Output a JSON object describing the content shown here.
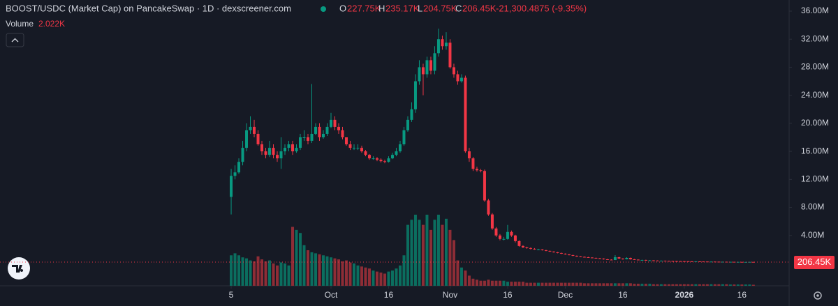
{
  "chart_data": {
    "type": "candlestick",
    "title": "BOOST/USDC (Market Cap) on PancakeSwap · 1D · dexscreener.com",
    "header": {
      "o": "O",
      "open": "227.75K",
      "h": "H",
      "high": "235.17K",
      "l": "L",
      "low": "204.75K",
      "c": "C",
      "close": "206.45K",
      "change": "-21,300.4875 (-9.35%)"
    },
    "volume_label": "Volume",
    "volume_value": "2.022K",
    "up_color": "#089981",
    "down_color": "#f23645",
    "volume_up_color": "#0b6e5f",
    "volume_down_color": "#8e2d36",
    "grid": false,
    "xlim": [
      -60.2,
      145.3
    ],
    "xticks": [
      {
        "value": 0,
        "label": "5"
      },
      {
        "value": 26,
        "label": "Oct"
      },
      {
        "value": 41,
        "label": "16"
      },
      {
        "value": 57,
        "label": "Nov"
      },
      {
        "value": 72,
        "label": "16"
      },
      {
        "value": 87,
        "label": "Dec"
      },
      {
        "value": 102,
        "label": "16"
      },
      {
        "value": 118,
        "label": "2026"
      },
      {
        "value": 133,
        "label": "16"
      }
    ],
    "ylim": [
      -3.18,
      37.59
    ],
    "yticks": [
      {
        "value": 4,
        "label": "4.00M"
      },
      {
        "value": 8,
        "label": "8.00M"
      },
      {
        "value": 12,
        "label": "12.00M"
      },
      {
        "value": 16,
        "label": "16.00M"
      },
      {
        "value": 20,
        "label": "20.00M"
      },
      {
        "value": 24,
        "label": "24.00M"
      },
      {
        "value": 28,
        "label": "28.00M"
      },
      {
        "value": 32,
        "label": "32.00M"
      },
      {
        "value": 36,
        "label": "36.00M"
      }
    ],
    "last_price": {
      "value": 0.20645,
      "label": "206.45K"
    },
    "open": [
      9.5,
      12.5,
      13,
      14.5,
      16.5,
      19,
      19.5,
      18.5,
      17,
      16,
      15.5,
      16.5,
      15.5,
      15,
      16,
      16.5,
      17,
      16,
      16.5,
      18,
      18,
      17.5,
      18.5,
      19.5,
      18,
      18.5,
      19.5,
      20.5,
      19.5,
      19,
      18,
      17,
      16.5,
      16.5,
      16.5,
      16,
      15.5,
      15,
      15,
      14.8,
      14.6,
      14.5,
      15,
      15.5,
      16,
      17,
      19,
      20.5,
      22,
      26,
      28,
      27,
      29,
      27.5,
      30,
      32,
      31,
      31.5,
      28,
      27,
      26,
      26.5,
      16,
      15,
      13.5,
      13.3,
      13.2,
      9,
      7,
      5,
      4,
      3.5,
      3.5,
      4.5,
      4,
      3.2,
      2.5,
      2.3,
      2.2,
      2.1,
      2,
      2,
      1.9,
      1.8,
      1.7,
      1.6,
      1.5,
      1.4,
      1.3,
      1.2,
      1.1,
      1,
      0.95,
      0.9,
      0.85,
      0.8,
      0.75,
      0.7,
      0.6,
      0.55,
      0.5,
      0.9,
      0.7,
      0.6,
      0.8,
      0.6,
      0.55,
      0.5,
      0.5,
      0.45,
      0.45,
      0.42,
      0.4,
      0.4,
      0.38,
      0.36,
      0.35,
      0.34,
      0.33,
      0.32,
      0.31,
      0.3,
      0.3,
      0.29,
      0.28,
      0.27,
      0.27,
      0.26,
      0.25,
      0.25,
      0.24,
      0.24,
      0.23,
      0.23,
      0.22,
      0.22,
      0.22775
    ],
    "high": [
      13.5,
      14,
      15,
      17.5,
      20,
      21,
      20.5,
      19,
      17.5,
      16.5,
      17.5,
      17,
      16,
      18,
      17,
      17.5,
      17.5,
      17,
      18.5,
      19,
      18.5,
      25.6,
      20,
      20,
      19,
      20,
      21.5,
      21,
      20,
      19.5,
      18,
      17.5,
      17,
      17,
      16.8,
      16.2,
      15.6,
      15.3,
      15.2,
      15,
      14.8,
      15.3,
      15.8,
      16.5,
      17.5,
      19.5,
      21,
      23,
      27,
      29,
      28.5,
      29.5,
      29.5,
      31,
      33.5,
      32.5,
      33,
      32,
      28.5,
      27.5,
      27,
      26.8,
      16.5,
      15.2,
      13.8,
      13.5,
      13.4,
      9.2,
      7.2,
      5.2,
      4.2,
      3.8,
      5.5,
      4.7,
      4.1,
      3.3,
      2.6,
      2.4,
      2.3,
      2.2,
      2.1,
      2.05,
      1.95,
      1.85,
      1.75,
      1.65,
      1.55,
      1.45,
      1.35,
      1.25,
      1.15,
      1.05,
      1,
      0.95,
      0.9,
      0.85,
      0.8,
      0.75,
      0.65,
      0.6,
      1.2,
      0.95,
      0.75,
      0.9,
      0.85,
      0.65,
      0.6,
      0.55,
      0.55,
      0.5,
      0.48,
      0.45,
      0.43,
      0.42,
      0.4,
      0.38,
      0.37,
      0.36,
      0.35,
      0.34,
      0.33,
      0.32,
      0.31,
      0.3,
      0.29,
      0.285,
      0.28,
      0.27,
      0.265,
      0.26,
      0.25,
      0.245,
      0.24,
      0.235,
      0.23,
      0.235,
      0.23517
    ],
    "low": [
      7,
      12,
      12.8,
      14,
      16,
      18.5,
      18,
      16.8,
      15.5,
      15,
      15.2,
      15,
      14.5,
      13.5,
      15.5,
      16,
      15.5,
      15.8,
      16.2,
      17.5,
      17,
      17.2,
      18.3,
      17.5,
      17.8,
      18.2,
      19.3,
      19,
      18.5,
      17.7,
      16.8,
      16.2,
      16.2,
      16.2,
      15.8,
      15.3,
      14.8,
      14.8,
      14.6,
      14.4,
      14.3,
      14.4,
      14.9,
      15.3,
      15.8,
      16.8,
      18.8,
      20.2,
      21.5,
      25.5,
      24,
      26.5,
      27,
      27,
      29.5,
      30.5,
      30.5,
      27.8,
      26.5,
      25.5,
      25.8,
      15.8,
      14.5,
      13.2,
      13.1,
      13,
      8.8,
      6.8,
      4.8,
      3.8,
      3.3,
      3.3,
      3.4,
      3.8,
      3,
      2.4,
      2.2,
      2.1,
      2,
      1.95,
      1.9,
      1.85,
      1.75,
      1.65,
      1.55,
      1.45,
      1.35,
      1.25,
      1.15,
      1.05,
      0.95,
      0.9,
      0.85,
      0.8,
      0.75,
      0.7,
      0.65,
      0.55,
      0.5,
      0.45,
      0.48,
      0.65,
      0.55,
      0.58,
      0.55,
      0.5,
      0.47,
      0.46,
      0.42,
      0.42,
      0.4,
      0.38,
      0.38,
      0.36,
      0.34,
      0.33,
      0.32,
      0.31,
      0.3,
      0.29,
      0.28,
      0.28,
      0.27,
      0.26,
      0.25,
      0.25,
      0.24,
      0.235,
      0.23,
      0.225,
      0.225,
      0.215,
      0.215,
      0.21,
      0.21,
      0.215,
      0.20475
    ],
    "close": [
      12.5,
      13,
      14.5,
      16.5,
      19,
      19.5,
      18.5,
      17,
      16,
      15.5,
      16.5,
      15.5,
      15,
      16,
      16.5,
      17,
      16,
      16.5,
      18,
      18,
      17.5,
      18.5,
      19.5,
      18,
      18.5,
      19.5,
      20.5,
      19.5,
      19,
      18,
      17,
      16.5,
      16.5,
      16.5,
      16,
      15.5,
      15,
      15,
      14.8,
      14.6,
      14.5,
      15,
      15.5,
      16,
      17,
      19,
      20.5,
      22,
      26,
      28,
      27,
      29,
      27.5,
      30,
      32,
      31,
      31.5,
      28,
      27,
      26,
      26.5,
      16,
      15,
      13.5,
      13.3,
      13.2,
      9,
      7,
      5,
      4,
      3.5,
      3.5,
      4.5,
      4,
      3.2,
      2.5,
      2.3,
      2.2,
      2.1,
      2,
      2,
      1.9,
      1.8,
      1.7,
      1.6,
      1.5,
      1.4,
      1.3,
      1.2,
      1.1,
      1,
      0.95,
      0.9,
      0.85,
      0.8,
      0.75,
      0.7,
      0.6,
      0.55,
      0.5,
      0.9,
      0.7,
      0.6,
      0.8,
      0.6,
      0.55,
      0.5,
      0.5,
      0.45,
      0.45,
      0.42,
      0.4,
      0.4,
      0.38,
      0.36,
      0.35,
      0.34,
      0.33,
      0.32,
      0.31,
      0.3,
      0.3,
      0.29,
      0.28,
      0.27,
      0.27,
      0.26,
      0.25,
      0.25,
      0.24,
      0.24,
      0.23,
      0.23,
      0.22,
      0.22,
      0.22775,
      0.20645
    ],
    "volume": [
      60,
      64,
      60,
      56,
      54,
      50,
      48,
      58,
      52,
      48,
      50,
      44,
      40,
      46,
      44,
      40,
      116,
      110,
      104,
      80,
      70,
      66,
      64,
      62,
      60,
      58,
      56,
      54,
      52,
      48,
      50,
      46,
      44,
      40,
      38,
      36,
      34,
      30,
      28,
      26,
      24,
      28,
      30,
      34,
      40,
      60,
      120,
      130,
      140,
      130,
      120,
      140,
      110,
      130,
      140,
      120,
      132,
      110,
      90,
      50,
      36,
      30,
      20,
      14,
      12,
      10,
      10,
      12,
      10,
      10,
      10,
      10,
      8,
      8,
      8,
      8,
      8,
      6,
      6,
      6,
      6,
      6,
      6,
      6,
      6,
      6,
      6,
      6,
      6,
      6,
      6,
      6,
      5,
      5,
      5,
      5,
      5,
      5,
      5,
      5,
      5,
      5,
      5,
      5,
      5,
      4,
      4,
      4,
      4,
      4,
      3,
      3,
      3,
      3,
      3,
      3,
      3,
      3,
      3,
      3,
      3,
      3,
      3,
      3,
      3,
      3,
      3,
      3,
      3,
      3,
      2.5,
      2.5,
      2.5,
      2.5,
      2.5,
      2.5,
      2.022
    ]
  }
}
